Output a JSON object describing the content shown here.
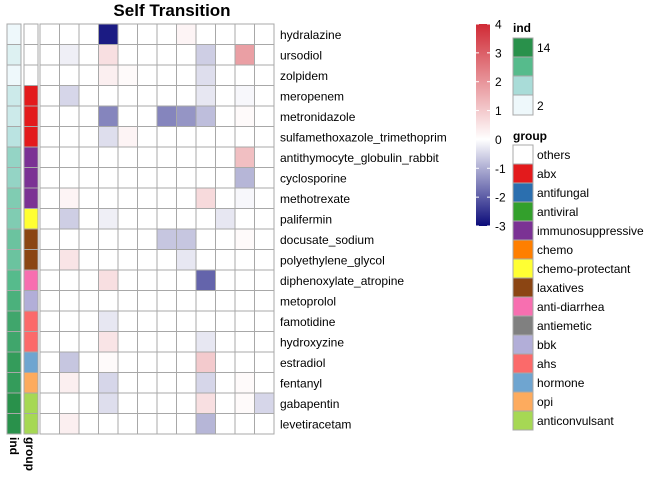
{
  "chart_data": {
    "type": "heatmap",
    "title": "Self Transition",
    "rows": [
      "hydralazine",
      "ursodiol",
      "zolpidem",
      "meropenem",
      "metronidazole",
      "sulfamethoxazole_trimethoprim",
      "antithymocyte_globulin_rabbit",
      "cyclosporine",
      "methotrexate",
      "palifermin",
      "docusate_sodium",
      "polyethylene_glycol",
      "diphenoxylate_atropine",
      "metoprolol",
      "famotidine",
      "hydroxyzine",
      "estradiol",
      "fentanyl",
      "gabapentin",
      "levetiracetam"
    ],
    "n_columns": 12,
    "values": [
      [
        0,
        0,
        0,
        -2.8,
        0,
        0,
        0,
        0.2,
        0,
        0,
        0,
        0
      ],
      [
        0,
        -0.2,
        0,
        0.6,
        0,
        0,
        0,
        0,
        -0.6,
        0,
        1.8,
        0
      ],
      [
        0,
        0,
        0,
        0.3,
        0.1,
        0,
        0,
        0,
        -0.4,
        0,
        0,
        0
      ],
      [
        0,
        -0.5,
        0,
        0,
        0,
        0,
        0,
        0,
        -0.3,
        0,
        -0.1,
        0
      ],
      [
        0,
        0,
        0,
        -1.5,
        0,
        0,
        -1.5,
        -1.3,
        -0.8,
        0,
        0.1,
        0
      ],
      [
        0,
        0,
        0,
        -0.4,
        0.2,
        0,
        0,
        0,
        0,
        0,
        0,
        0
      ],
      [
        0,
        0,
        0,
        0,
        0,
        0,
        0,
        0,
        0,
        0,
        1.2,
        0
      ],
      [
        0,
        0,
        0,
        0,
        0,
        0,
        0,
        0,
        0,
        0,
        -0.9,
        0
      ],
      [
        0,
        0.2,
        0,
        0,
        0,
        0,
        0,
        0,
        0.7,
        0,
        -0.1,
        0
      ],
      [
        0,
        -0.6,
        0,
        -0.2,
        0,
        0,
        0,
        0,
        0,
        -0.3,
        0,
        0
      ],
      [
        0,
        0,
        0,
        0,
        0,
        0,
        -0.7,
        -0.7,
        0,
        0,
        0.1,
        0
      ],
      [
        0,
        0.5,
        0,
        0,
        0,
        0,
        0,
        -0.3,
        0,
        0,
        0,
        0
      ],
      [
        0,
        0,
        0,
        0.6,
        0,
        0,
        0,
        0,
        -1.9,
        0,
        0,
        0
      ],
      [
        0,
        0,
        0,
        0,
        0,
        0,
        0,
        0,
        0,
        0,
        0,
        0
      ],
      [
        0,
        0,
        0,
        -0.3,
        0,
        0,
        0,
        0,
        0,
        0,
        0,
        0
      ],
      [
        0,
        0,
        0,
        0.5,
        0,
        0,
        0,
        0,
        -0.3,
        0,
        0,
        0
      ],
      [
        0,
        -0.7,
        0,
        0.1,
        0,
        0,
        0,
        0,
        1.0,
        0,
        0,
        0
      ],
      [
        0,
        0.3,
        0,
        -0.5,
        0,
        0,
        0,
        0,
        -0.5,
        0,
        0.1,
        0
      ],
      [
        0,
        0,
        0,
        -0.4,
        0,
        0,
        0,
        0,
        0.6,
        0,
        0.1,
        -0.5
      ],
      [
        0,
        0.3,
        0,
        0,
        0,
        0,
        0,
        0,
        -0.9,
        0,
        0,
        0
      ]
    ],
    "colorbar": {
      "min": -3,
      "max": 4,
      "ticks": [
        4,
        3,
        2,
        1,
        0,
        -1,
        -2,
        -3
      ],
      "low_color": "#0b0b7a",
      "mid_color": "#ffffff",
      "high_color": "#d02a35"
    },
    "row_annotations": {
      "ind": [
        2,
        3,
        2,
        4,
        4,
        5,
        7,
        7,
        8,
        8,
        9,
        9,
        10,
        11,
        12,
        12,
        13,
        13,
        14,
        14
      ],
      "group": [
        "others",
        "others",
        "others",
        "abx",
        "abx",
        "abx",
        "immunosuppressive",
        "immunosuppressive",
        "immunosuppressive",
        "chemo-protectant",
        "laxatives",
        "laxatives",
        "anti-diarrhea",
        "bbk",
        "ahs",
        "ahs",
        "hormone",
        "opi",
        "anticonvulsant",
        "anticonvulsant"
      ]
    },
    "annotation_labels": {
      "ind": "ind",
      "group": "group"
    },
    "legend_ind": {
      "title": "ind",
      "labels": [
        "14",
        "2"
      ],
      "gradient": [
        "#29914b",
        "#56bb8c",
        "#a9dcd8",
        "#eef8fb"
      ]
    },
    "legend_group": {
      "title": "group",
      "items": [
        {
          "label": "others",
          "color": "#ffffff"
        },
        {
          "label": "abx",
          "color": "#e31a1c"
        },
        {
          "label": "antifungal",
          "color": "#2b6faf"
        },
        {
          "label": "antiviral",
          "color": "#33a02c"
        },
        {
          "label": "immunosuppressive",
          "color": "#7b3294"
        },
        {
          "label": "chemo",
          "color": "#ff7f00"
        },
        {
          "label": "chemo-protectant",
          "color": "#ffff33"
        },
        {
          "label": "laxatives",
          "color": "#8b4513"
        },
        {
          "label": "anti-diarrhea",
          "color": "#f76fb0"
        },
        {
          "label": "antiemetic",
          "color": "#808080"
        },
        {
          "label": "bbk",
          "color": "#b2aed8"
        },
        {
          "label": "ahs",
          "color": "#fb6a6a"
        },
        {
          "label": "hormone",
          "color": "#6fa5d0"
        },
        {
          "label": "opi",
          "color": "#fdab5e"
        },
        {
          "label": "anticonvulsant",
          "color": "#a6d854"
        }
      ]
    },
    "grid": true,
    "legend_placement": "right"
  }
}
